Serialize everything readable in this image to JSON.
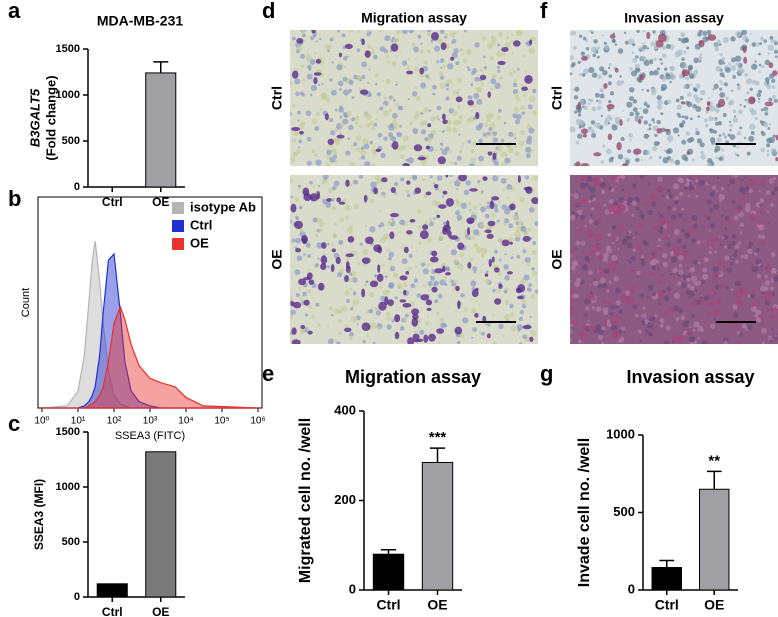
{
  "chart_data": [
    {
      "type": "bar",
      "panel": "a",
      "title": "MDA-MB-231",
      "ylabel_lines": [
        "B3GALT5",
        "(Fold change)"
      ],
      "categories": [
        "Ctrl",
        "OE"
      ],
      "values": [
        0,
        1240
      ],
      "errors": [
        null,
        120
      ],
      "colors": [
        "#000000",
        "#a0a0a4"
      ],
      "ylim": [
        0,
        1500
      ],
      "yticks": [
        0,
        500,
        1000,
        1500
      ]
    },
    {
      "type": "area",
      "panel": "b",
      "xlabel": "SSEA3 (FITC)",
      "ylabel": "Count",
      "log_x": true,
      "x": [
        1,
        5,
        10,
        15,
        20,
        25,
        30,
        40,
        50,
        70,
        100,
        150,
        200,
        300,
        500,
        1000,
        2000,
        5000,
        10000,
        30000,
        1000000
      ],
      "series": [
        {
          "name": "isotype Ab",
          "color": "#b4b4b4",
          "values": [
            0,
            1,
            8,
            25,
            50,
            70,
            79,
            60,
            40,
            18,
            6,
            2,
            1,
            0,
            0,
            0,
            0,
            0,
            0,
            0,
            0
          ]
        },
        {
          "name": "Ctrl",
          "color": "#1f2fd0",
          "values": [
            0,
            0,
            0,
            1,
            3,
            6,
            10,
            25,
            45,
            70,
            73,
            45,
            22,
            8,
            3,
            1,
            0,
            0,
            0,
            0,
            0
          ]
        },
        {
          "name": "OE",
          "color": "#e8302c",
          "values": [
            0,
            0,
            0,
            0,
            1,
            2,
            3,
            6,
            10,
            22,
            40,
            48,
            42,
            30,
            20,
            14,
            12,
            10,
            5,
            1,
            0
          ]
        }
      ],
      "xlim": [
        1,
        1000000
      ],
      "xticks": [
        {
          "value": 1,
          "label": "10⁰"
        },
        {
          "value": 10,
          "label": "10¹"
        },
        {
          "value": 100,
          "label": "10²"
        },
        {
          "value": 1000,
          "label": "10³"
        },
        {
          "value": 10000,
          "label": "10⁴"
        },
        {
          "value": 100000,
          "label": "10⁵"
        },
        {
          "value": 1000000,
          "label": "10⁶"
        }
      ],
      "ylim": [
        0,
        100
      ],
      "yticks": []
    },
    {
      "type": "bar",
      "panel": "c",
      "ylabel": "SSEA3 (MFI)",
      "categories": [
        "Ctrl",
        "OE"
      ],
      "values": [
        120,
        1320
      ],
      "colors": [
        "#000000",
        "#7a7a7a"
      ],
      "ylim": [
        0,
        1500
      ],
      "yticks": [
        0,
        500,
        1000,
        1500
      ]
    },
    {
      "type": "bar",
      "panel": "e",
      "title": "Migration assay",
      "ylabel": "Migrated cell no. /well",
      "categories": [
        "Ctrl",
        "OE"
      ],
      "values": [
        80,
        285
      ],
      "errors": [
        10,
        32
      ],
      "colors": [
        "#000000",
        "#a0a0a4"
      ],
      "annotation": "***",
      "ylim": [
        0,
        400
      ],
      "yticks": [
        0,
        200,
        400
      ]
    },
    {
      "type": "bar",
      "panel": "g",
      "title": "Invasion assay",
      "ylabel": "Invade cell no. /well",
      "categories": [
        "Ctrl",
        "OE"
      ],
      "values": [
        145,
        650
      ],
      "errors": [
        45,
        115
      ],
      "colors": [
        "#000000",
        "#a0a0a4"
      ],
      "annotation": "**",
      "ylim": [
        0,
        1000
      ],
      "yticks": [
        0,
        500,
        1000
      ]
    }
  ],
  "image_panels": [
    {
      "panel": "d",
      "title": "Migration assay",
      "rows": [
        "Ctrl",
        "OE"
      ]
    },
    {
      "panel": "f",
      "title": "Invasion assay",
      "rows": [
        "Ctrl",
        "OE"
      ]
    }
  ]
}
